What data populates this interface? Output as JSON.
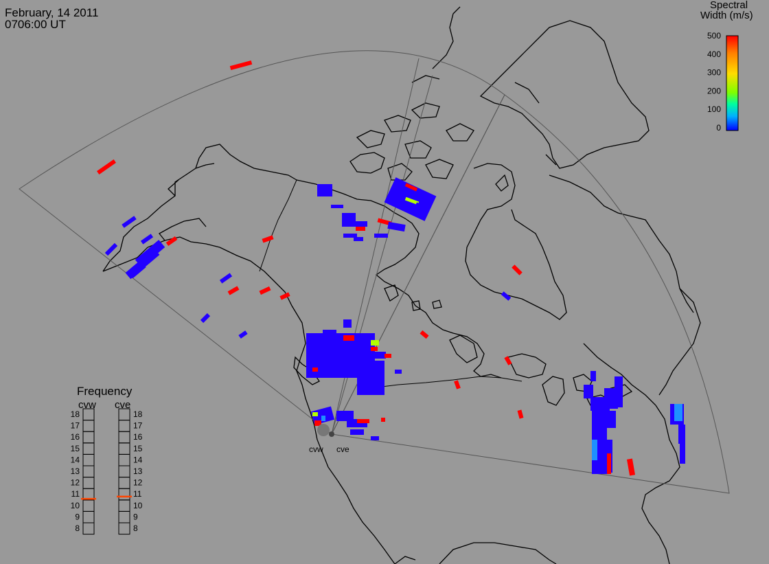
{
  "header": {
    "date": "February, 14 2011",
    "time": "0706:00 UT"
  },
  "colorbar": {
    "title_line1": "Spectral",
    "title_line2": "Width (m/s)",
    "ticks": [
      "500",
      "400",
      "300",
      "200",
      "100",
      "0"
    ],
    "colors": [
      "#ff0000",
      "#ff7f00",
      "#ffd400",
      "#7fff00",
      "#00ff7f",
      "#00c8ff",
      "#0040ff",
      "#0000ff"
    ]
  },
  "radars": {
    "west_label": "cvw",
    "east_label": "cve"
  },
  "frequency_panel": {
    "title": "Frequency",
    "left_label": "cvw",
    "right_label": "cve",
    "levels": [
      "18",
      "17",
      "16",
      "15",
      "14",
      "13",
      "12",
      "11",
      "10",
      "9",
      "8"
    ],
    "cvw_value": 10.6,
    "cve_value": 10.8,
    "indicator_color": "#ff4500"
  },
  "scatter_colors": {
    "low": "#2200ff",
    "high": "#ff0000",
    "mid": "#1e90ff",
    "green": "#b4ff00"
  }
}
